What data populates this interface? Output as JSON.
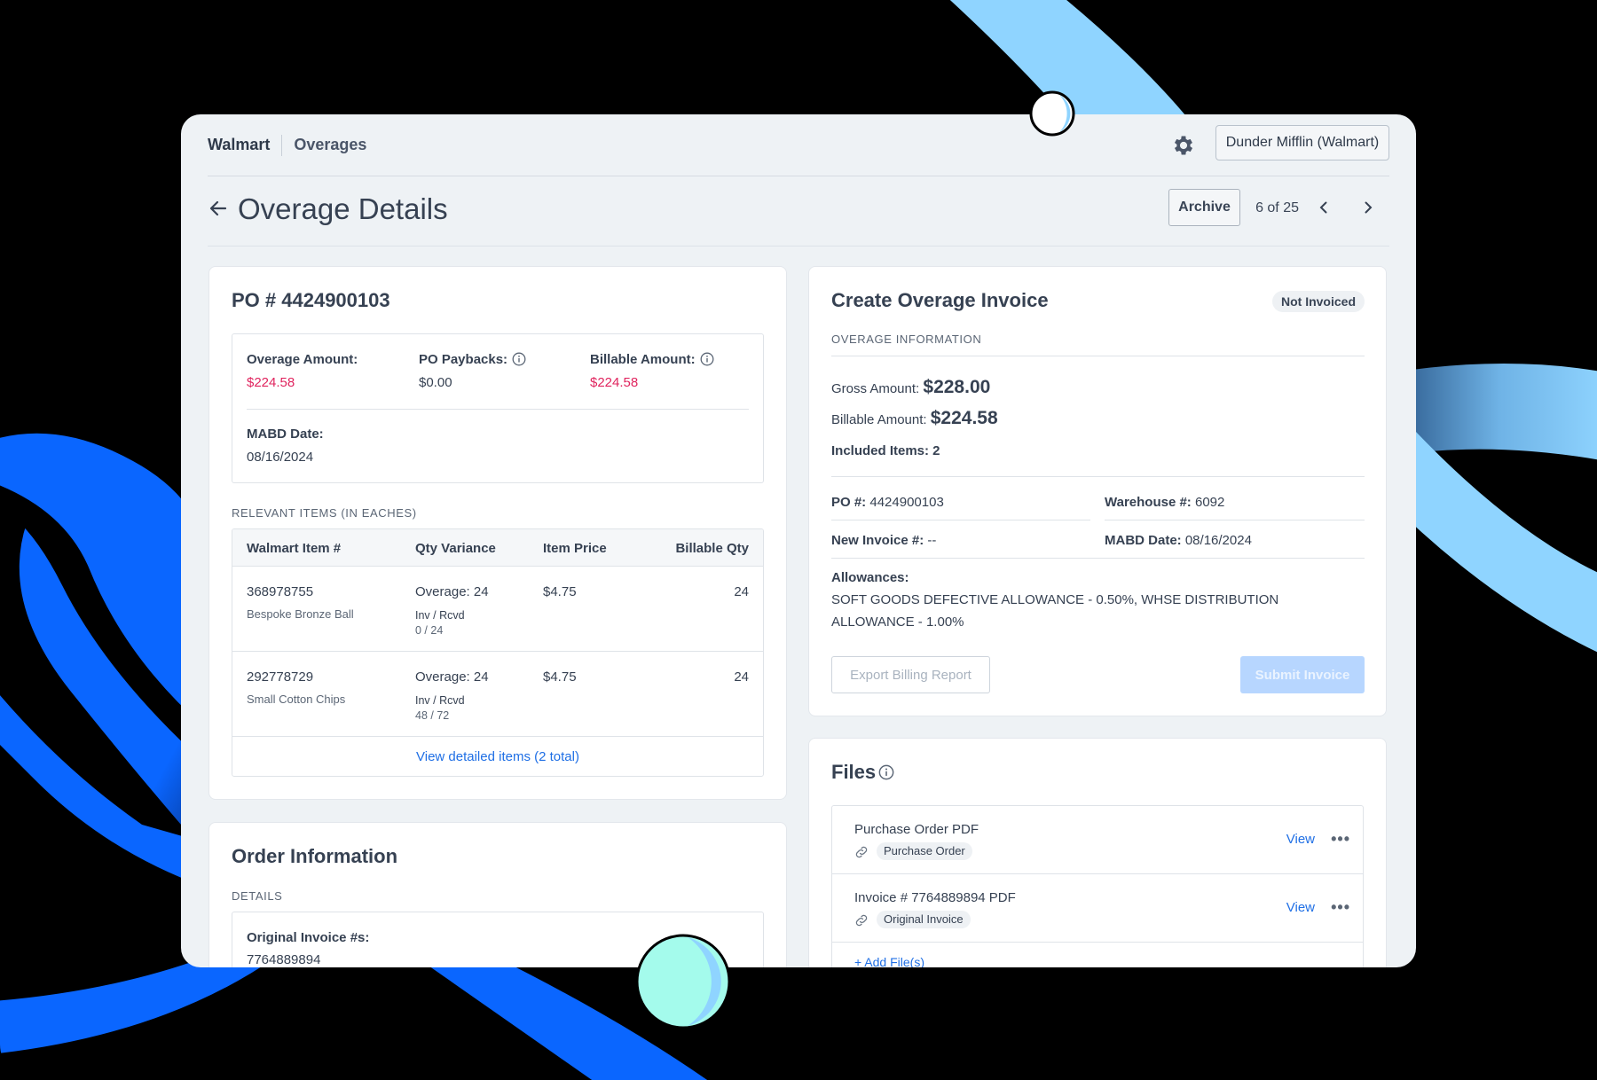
{
  "nav": {
    "brand": "Walmart",
    "section": "Overages",
    "account": "Dunder Mifflin (Walmart)"
  },
  "header": {
    "title": "Overage Details",
    "archive_label": "Archive",
    "pager": "6 of 25"
  },
  "po_card": {
    "title": "PO # 4424900103",
    "overage_amount_label": "Overage Amount:",
    "overage_amount": "$224.58",
    "po_paybacks_label": "PO Paybacks:",
    "po_paybacks": "$0.00",
    "billable_amount_label": "Billable Amount:",
    "billable_amount": "$224.58",
    "mabd_label": "MABD Date:",
    "mabd_date": "08/16/2024",
    "items_caption": "RELEVANT ITEMS (IN EACHES)",
    "columns": [
      "Walmart Item #",
      "Qty Variance",
      "Item Price",
      "Billable Qty"
    ],
    "items": [
      {
        "item_no": "368978755",
        "name": "Bespoke Bronze Ball",
        "variance": "Overage: 24",
        "inv_rcvd_label": "Inv / Rcvd",
        "inv_rcvd": "0 / 24",
        "price": "$4.75",
        "billable_qty": "24"
      },
      {
        "item_no": "292778729",
        "name": "Small Cotton Chips",
        "variance": "Overage: 24",
        "inv_rcvd_label": "Inv / Rcvd",
        "inv_rcvd": "48 / 72",
        "price": "$4.75",
        "billable_qty": "24"
      }
    ],
    "view_items_link": "View detailed items (2 total)"
  },
  "order_card": {
    "title": "Order Information",
    "details_caption": "DETAILS",
    "original_invoice_label": "Original Invoice #s:",
    "original_invoice": "7764889894"
  },
  "invoice_card": {
    "title": "Create Overage Invoice",
    "status_badge": "Not Invoiced",
    "info_caption": "OVERAGE INFORMATION",
    "gross_label": "Gross Amount:",
    "gross_amount": "$228.00",
    "billable_label": "Billable Amount:",
    "billable_amount": "$224.58",
    "included_items": "Included Items: 2",
    "po_label": "PO #:",
    "po_value": "4424900103",
    "warehouse_label": "Warehouse #:",
    "warehouse_value": "6092",
    "new_invoice_label": "New Invoice #:",
    "new_invoice_value": "--",
    "mabd_label": "MABD Date:",
    "mabd_value": "08/16/2024",
    "allowances_label": "Allowances:",
    "allowances_text": "SOFT GOODS DEFECTIVE ALLOWANCE - 0.50%, WHSE DISTRIBUTION ALLOWANCE - 1.00%",
    "export_label": "Export Billing Report",
    "submit_label": "Submit Invoice"
  },
  "files_card": {
    "title": "Files",
    "files": [
      {
        "name": "Purchase Order PDF",
        "tag": "Purchase Order",
        "view": "View"
      },
      {
        "name": "Invoice # 7764889894 PDF",
        "tag": "Original Invoice",
        "view": "View"
      }
    ],
    "add_file": "+ Add File(s)"
  },
  "colors": {
    "accent_blue": "#1f6fe5",
    "negative_red": "#e0245e",
    "deco_blue": "#0a66ff",
    "deco_light_blue": "#8fd4ff",
    "deco_mint": "#a4fbec"
  },
  "icons": [
    "gear-icon",
    "back-arrow-icon",
    "chevron-left-icon",
    "chevron-right-icon",
    "info-icon",
    "link-icon",
    "more-icon"
  ]
}
